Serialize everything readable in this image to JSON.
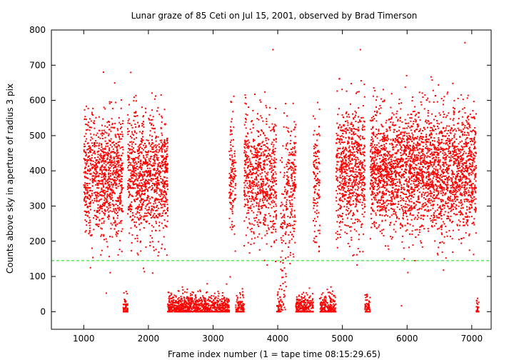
{
  "chart_data": {
    "type": "scatter",
    "title": "Lunar graze of 85 Ceti on Jul 15, 2001, observed by Brad Timerson",
    "xlabel": "Frame index number (1 = tape time 08:15:29.65)",
    "ylabel": "Counts above sky in aperture of radius 3 pix",
    "xlim": [
      500,
      7300
    ],
    "ylim": [
      -50,
      800
    ],
    "xticks": [
      1000,
      2000,
      3000,
      4000,
      5000,
      6000,
      7000
    ],
    "yticks": [
      0,
      100,
      200,
      300,
      400,
      500,
      600,
      700,
      800
    ],
    "grid": false,
    "legend": "none",
    "point_color": "#ff0000",
    "threshold_line": {
      "y": 145,
      "color": "#00dd00",
      "style": "dashed"
    },
    "segments": [
      {
        "x_range": [
          1000,
          1610
        ],
        "level": "high",
        "mean": 380,
        "spread": 85,
        "density": 1.6
      },
      {
        "x_range": [
          1610,
          1680
        ],
        "level": "low",
        "mean": 35,
        "spread": 25,
        "density": 0.9
      },
      {
        "x_range": [
          1680,
          2300
        ],
        "level": "high",
        "mean": 390,
        "spread": 85,
        "density": 1.6
      },
      {
        "x_range": [
          2300,
          3250
        ],
        "level": "low",
        "mean": 30,
        "spread": 25,
        "density": 1.0
      },
      {
        "x_range": [
          3250,
          3350
        ],
        "level": "high",
        "mean": 380,
        "spread": 90,
        "density": 1.3
      },
      {
        "x_range": [
          3350,
          3480
        ],
        "level": "low",
        "mean": 30,
        "spread": 25,
        "density": 0.8
      },
      {
        "x_range": [
          3480,
          3980
        ],
        "level": "high",
        "mean": 380,
        "spread": 85,
        "density": 1.4
      },
      {
        "x_range": [
          3980,
          4040
        ],
        "level": "low",
        "mean": 30,
        "spread": 25,
        "density": 0.7
      },
      {
        "x_range": [
          4040,
          4130
        ],
        "level": "mixed",
        "mean": 180,
        "spread": 150,
        "density": 1.0
      },
      {
        "x_range": [
          4130,
          4280
        ],
        "level": "high",
        "mean": 360,
        "spread": 90,
        "density": 1.3
      },
      {
        "x_range": [
          4280,
          4550
        ],
        "level": "low",
        "mean": 30,
        "spread": 25,
        "density": 0.9
      },
      {
        "x_range": [
          4550,
          4650
        ],
        "level": "high",
        "mean": 380,
        "spread": 90,
        "density": 1.2
      },
      {
        "x_range": [
          4650,
          4900
        ],
        "level": "low",
        "mean": 30,
        "spread": 25,
        "density": 0.9
      },
      {
        "x_range": [
          4900,
          5350
        ],
        "level": "high",
        "mean": 400,
        "spread": 90,
        "density": 1.6
      },
      {
        "x_range": [
          5350,
          5430
        ],
        "level": "low",
        "mean": 40,
        "spread": 25,
        "density": 0.8
      },
      {
        "x_range": [
          5430,
          7070
        ],
        "level": "high",
        "mean": 400,
        "spread": 85,
        "density": 1.7
      },
      {
        "x_range": [
          7070,
          7110
        ],
        "level": "low",
        "mean": 20,
        "spread": 20,
        "density": 0.6
      }
    ]
  }
}
